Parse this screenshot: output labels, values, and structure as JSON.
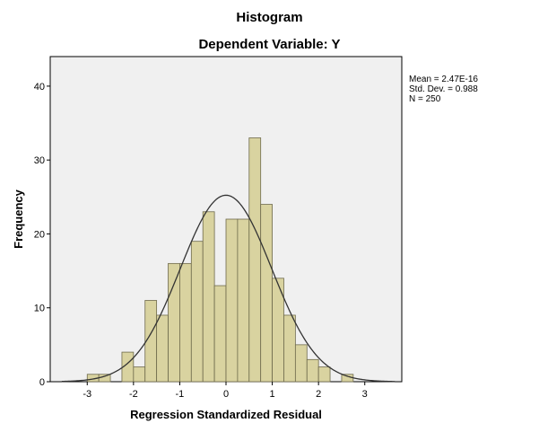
{
  "chart_data": {
    "type": "bar",
    "title": "Histogram",
    "subtitle": "Dependent Variable: Y",
    "xlabel": "Regression Standardized Residual",
    "ylabel": "Frequency",
    "xlim": [
      -3.8,
      3.8
    ],
    "ylim": [
      0,
      44
    ],
    "xticks": [
      "-3",
      "-2",
      "-1",
      "0",
      "1",
      "2",
      "3"
    ],
    "yticks": [
      "0",
      "10",
      "20",
      "30",
      "40"
    ],
    "bin_width": 0.25,
    "bins": [
      {
        "start": -3.0,
        "value": 1
      },
      {
        "start": -2.75,
        "value": 1
      },
      {
        "start": -2.25,
        "value": 4
      },
      {
        "start": -2.0,
        "value": 2
      },
      {
        "start": -1.75,
        "value": 11
      },
      {
        "start": -1.5,
        "value": 9
      },
      {
        "start": -1.25,
        "value": 16
      },
      {
        "start": -1.0,
        "value": 16
      },
      {
        "start": -0.75,
        "value": 19
      },
      {
        "start": -0.5,
        "value": 23
      },
      {
        "start": -0.25,
        "value": 13
      },
      {
        "start": 0.0,
        "value": 22
      },
      {
        "start": 0.25,
        "value": 22
      },
      {
        "start": 0.5,
        "value": 33
      },
      {
        "start": 0.75,
        "value": 24
      },
      {
        "start": 1.0,
        "value": 14
      },
      {
        "start": 1.25,
        "value": 9
      },
      {
        "start": 1.5,
        "value": 5
      },
      {
        "start": 1.75,
        "value": 3
      },
      {
        "start": 2.0,
        "value": 2
      },
      {
        "start": 2.5,
        "value": 1
      }
    ],
    "normal_curve": {
      "mean": 0.0,
      "std": 0.988,
      "n": 250
    },
    "stats": [
      "Mean = 2.47E-16",
      "Std. Dev. = 0.988",
      "N = 250"
    ],
    "colors": {
      "bar_fill": "#d9d3a0",
      "bar_stroke": "#6e6a4c",
      "plot_bg": "#f0f0f0",
      "curve": "#333333"
    }
  }
}
